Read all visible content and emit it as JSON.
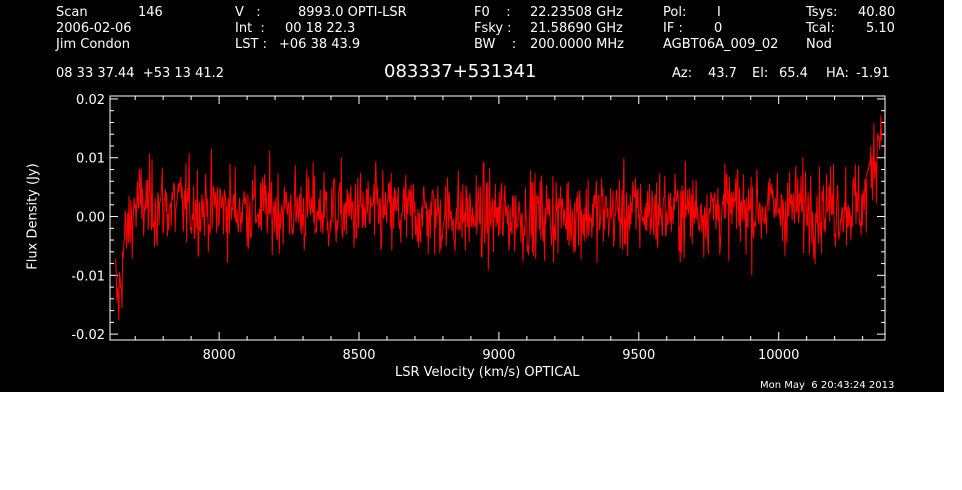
{
  "header": {
    "scan_label": "Scan",
    "scan_number": "146",
    "date": "2006-02-06",
    "observer": "Jim Condon",
    "velocity_label": "V   :",
    "velocity_value": "8993.0 OPTI-LSR",
    "int_label": "Int  :",
    "int_value": "00 18 22.3",
    "lst_label": "LST :",
    "lst_value": "+06 38 43.9",
    "f0_label": "F0    :",
    "f0_value": "22.23508 GHz",
    "fsky_label": "Fsky :",
    "fsky_value": "21.58690 GHz",
    "bw_label": "BW    :",
    "bw_value": "200.0000 MHz",
    "pol_label": "Pol:",
    "pol_value": "I",
    "if_label": "IF :",
    "if_value": "0",
    "project": "AGBT06A_009_02",
    "tsys_label": "Tsys:",
    "tsys_value": "40.80",
    "tcal_label": "Tcal:",
    "tcal_value": "5.10",
    "procedure": "Nod",
    "coordinates": "08 33 37.44  +53 13 41.2",
    "source": "083337+531341",
    "az_label": "Az:",
    "az_value": "43.7",
    "el_label": "El:",
    "el_value": "65.4",
    "ha_label": "HA:",
    "ha_value": "-1.91",
    "timestamp": "Mon May  6 20:43:24 2013"
  },
  "chart_data": {
    "type": "line",
    "xlabel": "LSR Velocity (km/s) OPTICAL",
    "ylabel": "Flux Density (Jy)",
    "xlim": [
      7610,
      10380
    ],
    "ylim": [
      -0.021,
      0.0205
    ],
    "xticks": [
      8000,
      8500,
      9000,
      9500,
      10000
    ],
    "yticks": [
      -0.02,
      -0.01,
      0.0,
      0.01,
      0.02
    ],
    "ytick_labels": [
      "-0.02",
      "-0.01",
      "0.00",
      "0.01",
      "0.02"
    ],
    "grid": false,
    "series": [
      {
        "color": "#ff0000",
        "x_start": 7630,
        "x_end": 10370,
        "points_count": 1200,
        "noise_rms_jy": 0.004,
        "x": [
          7630,
          7640,
          7660,
          7700,
          9000,
          10300,
          10340,
          10360,
          10370
        ],
        "y": [
          -0.012,
          -0.015,
          -0.005,
          0.002,
          0.0,
          0.002,
          0.01,
          0.014,
          0.017
        ]
      }
    ]
  },
  "colors": {
    "background": "#000000",
    "foreground": "#ffffff",
    "trace": "#ff0000"
  }
}
